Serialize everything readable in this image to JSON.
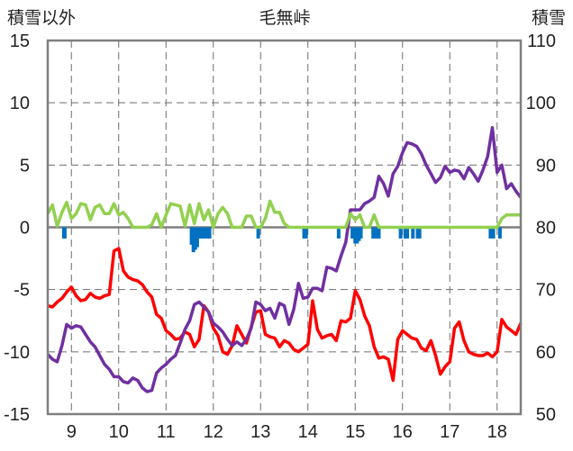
{
  "chart_data": {
    "type": "line",
    "title": "毛無峠",
    "ylabel_left": "積雪以外",
    "ylabel_right": "積雪",
    "x_ticks": [
      "9",
      "10",
      "11",
      "12",
      "13",
      "14",
      "15",
      "16",
      "17",
      "18"
    ],
    "xlim": [
      8.5,
      18.5
    ],
    "left_ylim": [
      -15,
      15
    ],
    "left_ticks": [
      "15",
      "10",
      "5",
      "0",
      "-5",
      "-10",
      "-15"
    ],
    "right_ylim": [
      50,
      110
    ],
    "right_ticks": [
      "110",
      "100",
      "90",
      "80",
      "70",
      "60",
      "50"
    ],
    "grid": "dashed vertical and horizontal",
    "series": [
      {
        "color": "#ff0000",
        "axis": "left",
        "x": [
          8.5,
          8.6,
          8.7,
          8.8,
          8.9,
          9.0,
          9.1,
          9.2,
          9.3,
          9.4,
          9.5,
          9.6,
          9.7,
          9.8,
          9.9,
          10.0,
          10.1,
          10.2,
          10.3,
          10.4,
          10.5,
          10.6,
          10.7,
          10.8,
          10.9,
          11.0,
          11.1,
          11.2,
          11.3,
          11.4,
          11.5,
          11.6,
          11.7,
          11.8,
          11.9,
          12.0,
          12.1,
          12.2,
          12.3,
          12.4,
          12.5,
          12.6,
          12.7,
          12.8,
          12.9,
          13.0,
          13.1,
          13.2,
          13.3,
          13.4,
          13.5,
          13.6,
          13.7,
          13.8,
          13.9,
          14.0,
          14.1,
          14.2,
          14.3,
          14.4,
          14.5,
          14.6,
          14.7,
          14.8,
          14.9,
          15.0,
          15.1,
          15.2,
          15.3,
          15.4,
          15.5,
          15.6,
          15.7,
          15.8,
          15.9,
          16.0,
          16.1,
          16.2,
          16.3,
          16.4,
          16.5,
          16.6,
          16.7,
          16.8,
          16.9,
          17.0,
          17.1,
          17.2,
          17.3,
          17.4,
          17.5,
          17.6,
          17.7,
          17.8,
          17.9,
          18.0,
          18.1,
          18.2,
          18.3,
          18.4,
          18.5
        ],
        "values": [
          -6.3,
          -6.4,
          -6.0,
          -5.7,
          -5.2,
          -4.8,
          -5.5,
          -5.9,
          -5.8,
          -5.3,
          -5.6,
          -5.7,
          -5.5,
          -5.4,
          -1.9,
          -1.7,
          -3.5,
          -4.0,
          -4.2,
          -4.3,
          -4.6,
          -5.2,
          -5.6,
          -7.0,
          -7.3,
          -8.3,
          -8.6,
          -9.0,
          -8.9,
          -8.4,
          -8.6,
          -9.6,
          -9.0,
          -6.3,
          -6.8,
          -8.1,
          -8.7,
          -10.0,
          -10.2,
          -9.5,
          -7.9,
          -8.6,
          -9.3,
          -8.0,
          -6.8,
          -6.7,
          -8.6,
          -8.8,
          -8.9,
          -9.6,
          -9.1,
          -9.3,
          -9.8,
          -10.0,
          -9.7,
          -9.4,
          -5.9,
          -8.2,
          -8.9,
          -8.7,
          -8.6,
          -9.1,
          -7.5,
          -7.6,
          -7.3,
          -5.1,
          -5.8,
          -7.1,
          -7.9,
          -9.6,
          -10.5,
          -10.4,
          -10.6,
          -12.3,
          -9.0,
          -8.3,
          -8.6,
          -8.9,
          -9.0,
          -9.7,
          -9.9,
          -9.1,
          -10.3,
          -11.8,
          -11.2,
          -10.8,
          -8.1,
          -7.6,
          -9.1,
          -10.0,
          -10.2,
          -10.3,
          -10.3,
          -10.1,
          -10.4,
          -10.0,
          -7.4,
          -8.0,
          -8.3,
          -8.6,
          -7.7
        ]
      },
      {
        "color": "#7030a0",
        "axis": "left",
        "x": [
          8.5,
          8.6,
          8.7,
          8.8,
          8.9,
          9.0,
          9.1,
          9.2,
          9.3,
          9.4,
          9.5,
          9.6,
          9.7,
          9.8,
          9.9,
          10.0,
          10.1,
          10.2,
          10.3,
          10.4,
          10.5,
          10.6,
          10.7,
          10.8,
          10.9,
          11.0,
          11.1,
          11.2,
          11.3,
          11.4,
          11.5,
          11.6,
          11.7,
          11.8,
          11.9,
          12.0,
          12.1,
          12.2,
          12.3,
          12.4,
          12.5,
          12.6,
          12.7,
          12.8,
          12.9,
          13.0,
          13.1,
          13.2,
          13.3,
          13.4,
          13.5,
          13.6,
          13.7,
          13.8,
          13.9,
          14.0,
          14.1,
          14.2,
          14.3,
          14.4,
          14.5,
          14.6,
          14.7,
          14.8,
          14.9,
          15.0,
          15.1,
          15.2,
          15.3,
          15.4,
          15.5,
          15.6,
          15.7,
          15.8,
          15.9,
          16.0,
          16.1,
          16.2,
          16.3,
          16.4,
          16.5,
          16.6,
          16.7,
          16.8,
          16.9,
          17.0,
          17.1,
          17.2,
          17.3,
          17.4,
          17.5,
          17.6,
          17.7,
          17.8,
          17.9,
          18.0,
          18.1,
          18.2,
          18.3,
          18.4,
          18.5
        ],
        "values": [
          -10.2,
          -10.6,
          -10.8,
          -9.5,
          -7.8,
          -8.1,
          -7.9,
          -8.0,
          -8.6,
          -9.2,
          -9.6,
          -10.3,
          -11.0,
          -11.4,
          -12.0,
          -12.0,
          -12.4,
          -12.5,
          -12.1,
          -12.3,
          -12.9,
          -13.2,
          -13.1,
          -11.7,
          -11.3,
          -11.0,
          -10.6,
          -10.3,
          -9.3,
          -8.2,
          -7.5,
          -6.2,
          -6.0,
          -6.4,
          -6.8,
          -7.7,
          -8.0,
          -8.4,
          -9.0,
          -9.5,
          -9.2,
          -9.5,
          -9.0,
          -8.1,
          -6.0,
          -6.2,
          -6.7,
          -6.5,
          -7.3,
          -6.1,
          -6.3,
          -7.8,
          -6.6,
          -4.5,
          -5.7,
          -5.6,
          -4.9,
          -4.9,
          -5.1,
          -3.2,
          -3.3,
          -3.5,
          -2.3,
          -1.2,
          1.4,
          1.4,
          1.4,
          1.9,
          2.1,
          2.4,
          4.1,
          3.5,
          2.5,
          4.3,
          4.9,
          6.0,
          6.8,
          6.7,
          6.5,
          5.9,
          5.0,
          4.3,
          3.6,
          4.0,
          4.9,
          4.4,
          4.6,
          4.5,
          3.9,
          4.8,
          4.3,
          3.7,
          4.6,
          5.7,
          8.0,
          4.4,
          5.0,
          3.1,
          3.5,
          2.9,
          2.4
        ]
      },
      {
        "color": "#92d050",
        "axis": "left",
        "x": [
          8.5,
          8.6,
          8.7,
          8.8,
          8.9,
          9.0,
          9.1,
          9.2,
          9.3,
          9.4,
          9.5,
          9.6,
          9.7,
          9.8,
          9.9,
          10.0,
          10.1,
          10.2,
          10.3,
          10.4,
          10.5,
          10.6,
          10.7,
          10.8,
          10.9,
          11.0,
          11.1,
          11.2,
          11.3,
          11.4,
          11.5,
          11.6,
          11.7,
          11.8,
          11.9,
          12.0,
          12.1,
          12.2,
          12.3,
          12.4,
          12.5,
          12.6,
          12.7,
          12.8,
          12.9,
          13.0,
          13.1,
          13.2,
          13.3,
          13.4,
          13.5,
          13.6,
          13.7,
          13.8,
          13.9,
          14.0,
          14.1,
          14.2,
          14.3,
          14.4,
          14.5,
          14.6,
          14.7,
          14.8,
          14.9,
          15.0,
          15.1,
          15.2,
          15.3,
          15.4,
          15.5,
          15.6,
          15.7,
          15.8,
          15.9,
          16.0,
          16.1,
          16.2,
          16.3,
          16.4,
          16.5,
          16.6,
          16.7,
          16.8,
          16.9,
          17.0,
          17.1,
          17.2,
          17.3,
          17.4,
          17.5,
          17.6,
          17.7,
          17.8,
          17.9,
          18.0,
          18.1,
          18.2,
          18.3,
          18.4,
          18.5
        ],
        "values": [
          1.1,
          1.8,
          0.1,
          1.2,
          2.0,
          0.7,
          1.1,
          1.9,
          1.8,
          0.6,
          1.6,
          1.8,
          1.1,
          1.1,
          1.9,
          1.0,
          1.2,
          0.7,
          0.0,
          0.0,
          0.0,
          0.0,
          0.2,
          1.1,
          0.0,
          1.0,
          1.9,
          1.8,
          1.7,
          0.1,
          1.8,
          0.3,
          1.9,
          0.6,
          1.4,
          0.0,
          1.1,
          1.6,
          1.1,
          0.0,
          0.0,
          0.0,
          0.9,
          0.9,
          0.0,
          0.0,
          0.7,
          2.1,
          1.2,
          1.2,
          0.3,
          0.0,
          0.0,
          0.0,
          0.0,
          0.0,
          0.0,
          0.0,
          0.0,
          0.0,
          0.0,
          0.0,
          0.0,
          0.0,
          1.1,
          0.6,
          1.0,
          0.0,
          0.0,
          1.0,
          0.0,
          0.0,
          0.0,
          0.0,
          0.0,
          0.0,
          0.0,
          0.0,
          0.0,
          0.0,
          0.0,
          0.0,
          0.0,
          0.0,
          0.0,
          0.0,
          0.0,
          0.0,
          0.0,
          0.0,
          0.0,
          0.0,
          0.0,
          0.0,
          0.0,
          0.0,
          0.7,
          1.0,
          1.0,
          1.0,
          1.0
        ]
      },
      {
        "type": "bar",
        "color": "#0070c0",
        "axis": "left",
        "x": [
          8.84,
          8.86,
          11.54,
          11.58,
          11.62,
          11.66,
          11.72,
          11.77,
          11.82,
          11.87,
          11.92,
          12.95,
          13.92,
          13.96,
          14.65,
          14.94,
          15.0,
          15.04,
          15.08,
          15.12,
          15.38,
          15.44,
          15.5,
          15.96,
          16.06,
          16.1,
          16.22,
          16.32,
          16.36,
          17.86,
          17.92,
          18.06
        ],
        "values": [
          -0.9,
          -0.9,
          -1.4,
          -2.0,
          -1.8,
          -1.6,
          -0.9,
          -0.9,
          -0.9,
          -0.9,
          -0.9,
          -0.9,
          -0.9,
          -0.9,
          -0.9,
          -0.9,
          -1.3,
          -1.3,
          -1.1,
          -0.9,
          -0.9,
          -0.9,
          -0.9,
          -0.9,
          -0.9,
          -0.9,
          -0.9,
          -0.9,
          -0.9,
          -0.9,
          -0.9,
          -0.9
        ]
      }
    ]
  }
}
